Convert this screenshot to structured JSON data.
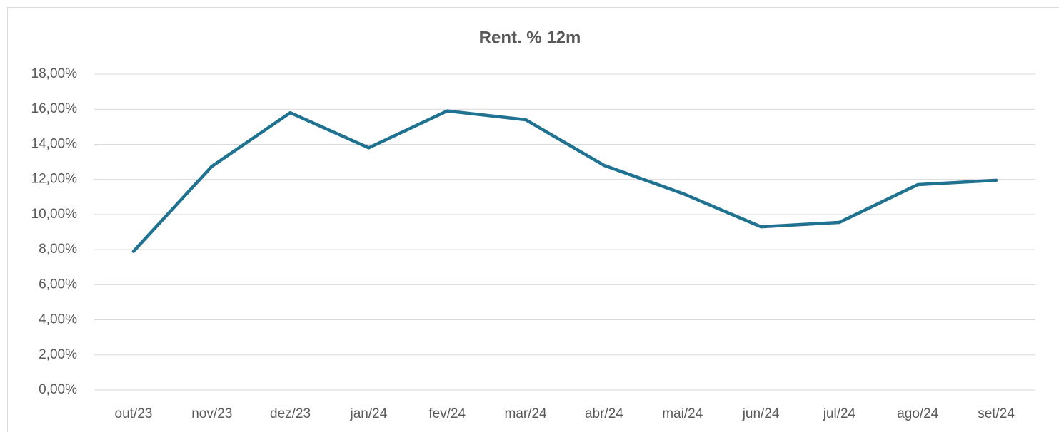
{
  "chart_data": {
    "type": "line",
    "title": "Rent. % 12m",
    "categories": [
      "out/23",
      "nov/23",
      "dez/23",
      "jan/24",
      "fev/24",
      "mar/24",
      "abr/24",
      "mai/24",
      "jun/24",
      "jul/24",
      "ago/24",
      "set/24"
    ],
    "series": [
      {
        "name": "Rent. % 12m",
        "color": "#1f7391",
        "values": [
          7.9,
          12.75,
          15.8,
          13.8,
          15.9,
          15.4,
          12.8,
          11.2,
          9.3,
          9.55,
          11.7,
          11.95
        ]
      }
    ],
    "ylim": [
      0,
      18
    ],
    "yticks": [
      {
        "value": 0,
        "label": "0,00%"
      },
      {
        "value": 2,
        "label": "2,00%"
      },
      {
        "value": 4,
        "label": "4,00%"
      },
      {
        "value": 6,
        "label": "6,00%"
      },
      {
        "value": 8,
        "label": "8,00%"
      },
      {
        "value": 10,
        "label": "10,00%"
      },
      {
        "value": 12,
        "label": "12,00%"
      },
      {
        "value": 14,
        "label": "14,00%"
      },
      {
        "value": 16,
        "label": "16,00%"
      },
      {
        "value": 18,
        "label": "18,00%"
      }
    ],
    "grid": true,
    "legend": false
  }
}
